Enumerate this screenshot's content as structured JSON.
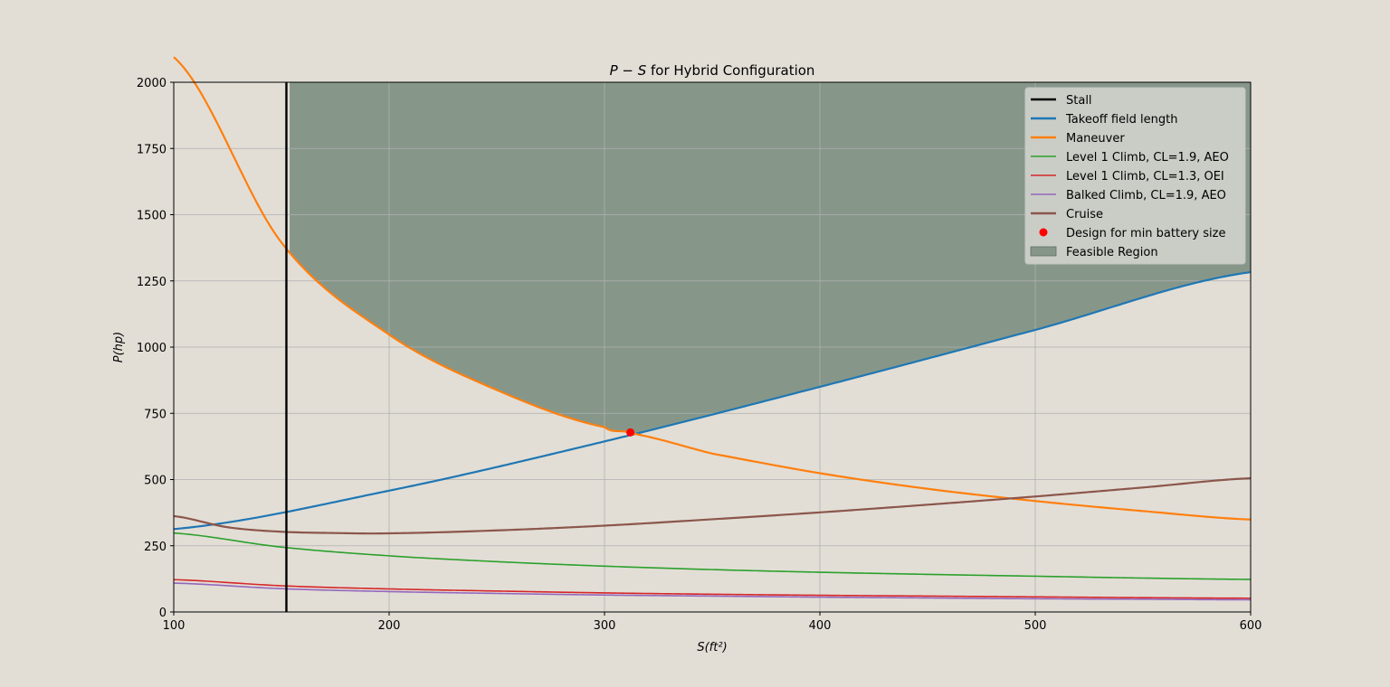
{
  "chart_data": {
    "type": "line",
    "title_prefix": "P − S",
    "title_suffix": " for Hybrid Configuration",
    "xlabel": "S(ft²)",
    "ylabel": "P(hp)",
    "xlim": [
      100,
      600
    ],
    "ylim": [
      0,
      2000
    ],
    "xticks": [
      100,
      200,
      300,
      400,
      500,
      600
    ],
    "yticks": [
      0,
      250,
      500,
      750,
      1000,
      1250,
      1500,
      1750,
      2000
    ],
    "grid": true,
    "legend_position": "top-right",
    "colors": {
      "background": "#e2ded6",
      "feasible_fill": "#86978a",
      "grid": "#b0b0b0"
    },
    "series": [
      {
        "name": "Stall",
        "kind": "vline",
        "color": "#000000",
        "x": 152.3
      },
      {
        "name": "Takeoff field length",
        "kind": "line",
        "color": "#1f77b4",
        "x": [
          100,
          200,
          300,
          400,
          500,
          600
        ],
        "y": [
          313,
          458,
          644,
          850,
          1065,
          1283
        ]
      },
      {
        "name": "Maneuver",
        "kind": "line",
        "color": "#ff7f0e",
        "x": [
          100,
          150,
          200,
          250,
          300,
          312,
          350,
          400,
          450,
          500,
          550,
          600
        ],
        "y": [
          2095,
          1395,
          1047,
          838,
          698,
          675,
          598,
          524,
          465,
          419,
          381,
          349
        ]
      },
      {
        "name": "Level 1 Climb, CL=1.9, AEO",
        "kind": "line",
        "color": "#2ca02c",
        "x": [
          100,
          150,
          200,
          250,
          300,
          350,
          400,
          450,
          500,
          550,
          600
        ],
        "y": [
          298,
          245,
          212,
          190,
          173,
          160,
          150,
          142,
          135,
          128,
          123
        ]
      },
      {
        "name": "Level 1 Climb, CL=1.3, OEI",
        "kind": "line",
        "color": "#d62728",
        "x": [
          100,
          150,
          200,
          250,
          300,
          350,
          400,
          450,
          500,
          550,
          600
        ],
        "y": [
          122,
          99,
          87,
          79,
          72,
          67,
          63,
          60,
          57,
          54,
          52
        ]
      },
      {
        "name": "Balked Climb, CL=1.9, AEO",
        "kind": "line",
        "color": "#9467bd",
        "x": [
          100,
          150,
          200,
          250,
          300,
          350,
          400,
          450,
          500,
          550,
          600
        ],
        "y": [
          109,
          88,
          77,
          70,
          64,
          60,
          56,
          53,
          50,
          48,
          46
        ]
      },
      {
        "name": "Cruise",
        "kind": "line",
        "color": "#8c564b",
        "x": [
          100,
          125,
          150,
          175,
          200,
          250,
          300,
          350,
          400,
          450,
          500,
          550,
          600
        ],
        "y": [
          362,
          320,
          303,
          298,
          297,
          308,
          326,
          350,
          376,
          405,
          436,
          470,
          505
        ]
      },
      {
        "name": "Design for min battery size",
        "kind": "point",
        "color": "#ff0000",
        "x": 312,
        "y": 678
      },
      {
        "name": "Feasible Region",
        "kind": "fill",
        "color": "#86978a"
      }
    ]
  }
}
